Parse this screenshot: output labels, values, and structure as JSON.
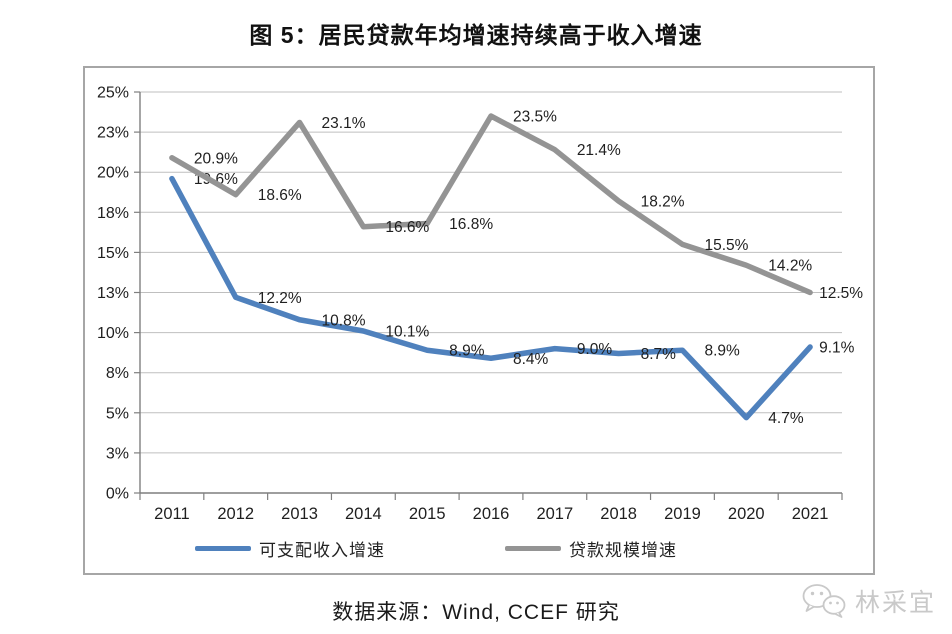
{
  "figure": {
    "title": "图 5：居民贷款年均增速持续高于收入增速",
    "source": "数据来源：Wind, CCEF 研究",
    "watermark": "林采宜"
  },
  "chart_data": {
    "type": "line",
    "title": "图 5：居民贷款年均增速持续高于收入增速",
    "categories": [
      "2011",
      "2012",
      "2013",
      "2014",
      "2015",
      "2016",
      "2017",
      "2018",
      "2019",
      "2020",
      "2021"
    ],
    "series": [
      {
        "name": "可支配收入增速",
        "color": "#4F81BD",
        "values": [
          19.6,
          12.2,
          10.8,
          10.1,
          8.9,
          8.4,
          9.0,
          8.7,
          8.9,
          4.7,
          9.1
        ],
        "labels": [
          "19.6%",
          "12.2%",
          "10.8%",
          "10.1%",
          "8.9%",
          "8.4%",
          "9.0%",
          "8.7%",
          "8.9%",
          "4.7%",
          "9.1%"
        ]
      },
      {
        "name": "贷款规模增速",
        "color": "#949494",
        "values": [
          20.9,
          18.6,
          23.1,
          16.6,
          16.8,
          23.5,
          21.4,
          18.2,
          15.5,
          14.2,
          12.5
        ],
        "labels": [
          "20.9%",
          "18.6%",
          "23.1%",
          "16.6%",
          "16.8%",
          "23.5%",
          "21.4%",
          "18.2%",
          "15.5%",
          "14.2%",
          "12.5%"
        ]
      }
    ],
    "y_axis": {
      "min": 0,
      "max": 25,
      "tick_values": [
        0,
        2.5,
        5,
        7.5,
        10,
        12.5,
        15,
        17.5,
        20,
        22.5,
        25
      ],
      "tick_labels": [
        "0%",
        "3%",
        "5%",
        "8%",
        "10%",
        "13%",
        "15%",
        "18%",
        "20%",
        "23%",
        "25%"
      ]
    },
    "legend_position": "bottom",
    "grid": true,
    "style": {
      "grid_color": "#bfbfbf",
      "axis_color": "#7f7f7f",
      "text_color": "#1f1f1f",
      "border_color": "#a6a6a6"
    }
  }
}
